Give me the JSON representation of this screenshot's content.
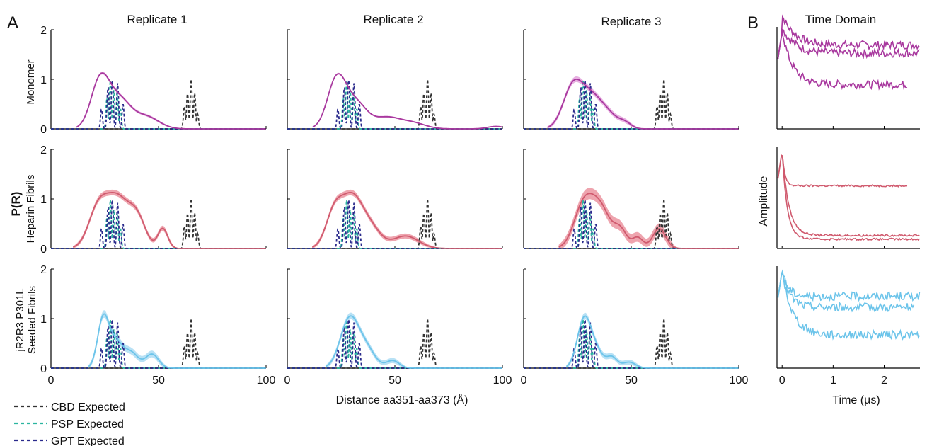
{
  "panel_labels": [
    "A",
    "B"
  ],
  "column_titles": [
    "Replicate 1",
    "Replicate 2",
    "Replicate 3"
  ],
  "time_domain_title": "Time Domain",
  "row_labels": [
    [
      "Monomer"
    ],
    [
      "Heparin Fibrils"
    ],
    [
      "jR2R3 P301L",
      "Seeded Fibrils"
    ]
  ],
  "shared_ylabel": "P(R)",
  "x_axis_label": "Distance aa351-aa373 (Å)",
  "time_xlabel": "Time (µs)",
  "time_ylabel": "Amplitude",
  "y_ticks": [
    "0",
    "1",
    "2"
  ],
  "x_ticks": [
    "0",
    "50",
    "100"
  ],
  "time_ticks": [
    "0",
    "1",
    "2"
  ],
  "legend": [
    {
      "label": "CBD Expected",
      "color": "#333333"
    },
    {
      "label": "PSP Expected",
      "color": "#2bb5a0"
    },
    {
      "label": "GPT Expected",
      "color": "#2a2a8c"
    }
  ],
  "colors": {
    "monomer": "#a8389e",
    "heparin": "#d05a6e",
    "seeded": "#6cc4ea",
    "monomer_band": "#e4a7de",
    "heparin_band": "#ec9aa5",
    "seeded_band": "#b0def4"
  },
  "chart_data": {
    "type": "line",
    "xlim": [
      0,
      100
    ],
    "ylim": [
      0,
      2
    ],
    "expected": {
      "CBD": {
        "peaks": [
          {
            "x": 62,
            "h": 0.45
          },
          {
            "x": 63.5,
            "h": 0.72
          },
          {
            "x": 65.2,
            "h": 1.0
          },
          {
            "x": 66.8,
            "h": 0.72
          },
          {
            "x": 68.2,
            "h": 0.3
          }
        ]
      },
      "PSP": {
        "peaks": [
          {
            "x": 26,
            "h": 0.62
          },
          {
            "x": 27.6,
            "h": 0.98
          },
          {
            "x": 29.2,
            "h": 0.78
          },
          {
            "x": 30.8,
            "h": 0.7
          },
          {
            "x": 32.3,
            "h": 0.4
          }
        ]
      },
      "GPT": {
        "peaks": [
          {
            "x": 23.5,
            "h": 0.4
          },
          {
            "x": 26.5,
            "h": 0.85
          },
          {
            "x": 28.5,
            "h": 1.0
          },
          {
            "x": 31,
            "h": 0.92
          },
          {
            "x": 33.5,
            "h": 0.5
          }
        ]
      }
    },
    "distance_distributions": [
      [
        {
          "components": [
            [
              23,
              4.3,
              1.0
            ],
            [
              32,
              5,
              0.55
            ],
            [
              44,
              6,
              0.25
            ]
          ],
          "band": 0.03
        },
        {
          "components": [
            [
              23,
              4.3,
              1.0
            ],
            [
              32,
              5,
              0.5
            ],
            [
              46,
              6,
              0.22
            ],
            [
              58,
              6,
              0.12
            ],
            [
              97,
              4,
              0.05
            ]
          ],
          "band": 0.02
        },
        {
          "components": [
            [
              23,
              4.6,
              0.85
            ],
            [
              32,
              5,
              0.6
            ],
            [
              40,
              4,
              0.2
            ],
            [
              47,
              3,
              0.12
            ]
          ],
          "band": 0.06
        }
      ],
      [
        {
          "components": [
            [
              22,
              4.5,
              0.8
            ],
            [
              31,
              5,
              0.95
            ],
            [
              40,
              4,
              0.6
            ],
            [
              52,
              2.3,
              0.4
            ]
          ],
          "band": 0.06
        },
        {
          "components": [
            [
              22,
              4,
              0.75
            ],
            [
              30,
              4.5,
              0.9
            ],
            [
              38,
              5,
              0.45
            ],
            [
              55,
              6,
              0.25
            ]
          ],
          "band": 0.06
        },
        {
          "components": [
            [
              28,
              4.5,
              0.88
            ],
            [
              36,
              4.5,
              0.75
            ],
            [
              45,
              3,
              0.35
            ],
            [
              53,
              2.5,
              0.22
            ],
            [
              63,
              3,
              0.4
            ]
          ],
          "band": 0.12
        }
      ],
      [
        {
          "components": [
            [
              24.3,
              2.6,
              1.0
            ],
            [
              30,
              3,
              0.5
            ],
            [
              37,
              3.5,
              0.32
            ],
            [
              47,
              3,
              0.28
            ]
          ],
          "band": 0.08
        },
        {
          "components": [
            [
              29,
              4.3,
              1.0
            ],
            [
              37,
              4,
              0.35
            ],
            [
              49,
              3,
              0.15
            ]
          ],
          "band": 0.07
        },
        {
          "components": [
            [
              28.2,
              3.2,
              1.0
            ],
            [
              34,
              3,
              0.3
            ],
            [
              41,
              2.5,
              0.22
            ],
            [
              49,
              3,
              0.12
            ]
          ],
          "band": 0.07
        }
      ]
    ],
    "time_domain": {
      "xlim": [
        -0.1,
        2.7
      ],
      "traces": [
        [
          {
            "plateau": 0.85,
            "drop": 0.32,
            "tau": 0.25,
            "end": 2.7
          },
          {
            "plateau": 0.76,
            "drop": 0.28,
            "tau": 0.25,
            "end": 2.7
          },
          {
            "plateau": 0.42,
            "drop": 0.58,
            "tau": 0.2,
            "end": 2.45
          }
        ],
        [
          {
            "plateau": 0.62,
            "drop": 0.38,
            "tau": 0.05,
            "end": 2.45
          },
          {
            "plateau": 0.08,
            "drop": 0.92,
            "tau": 0.13,
            "end": 2.7
          },
          {
            "plateau": 0.04,
            "drop": 0.96,
            "tau": 0.1,
            "end": 2.7
          }
        ],
        [
          {
            "plateau": 0.72,
            "drop": 0.28,
            "tau": 0.12,
            "end": 2.7
          },
          {
            "plateau": 0.6,
            "drop": 0.4,
            "tau": 0.15,
            "end": 2.6
          },
          {
            "plateau": 0.3,
            "drop": 0.7,
            "tau": 0.2,
            "end": 2.7
          }
        ]
      ]
    }
  }
}
